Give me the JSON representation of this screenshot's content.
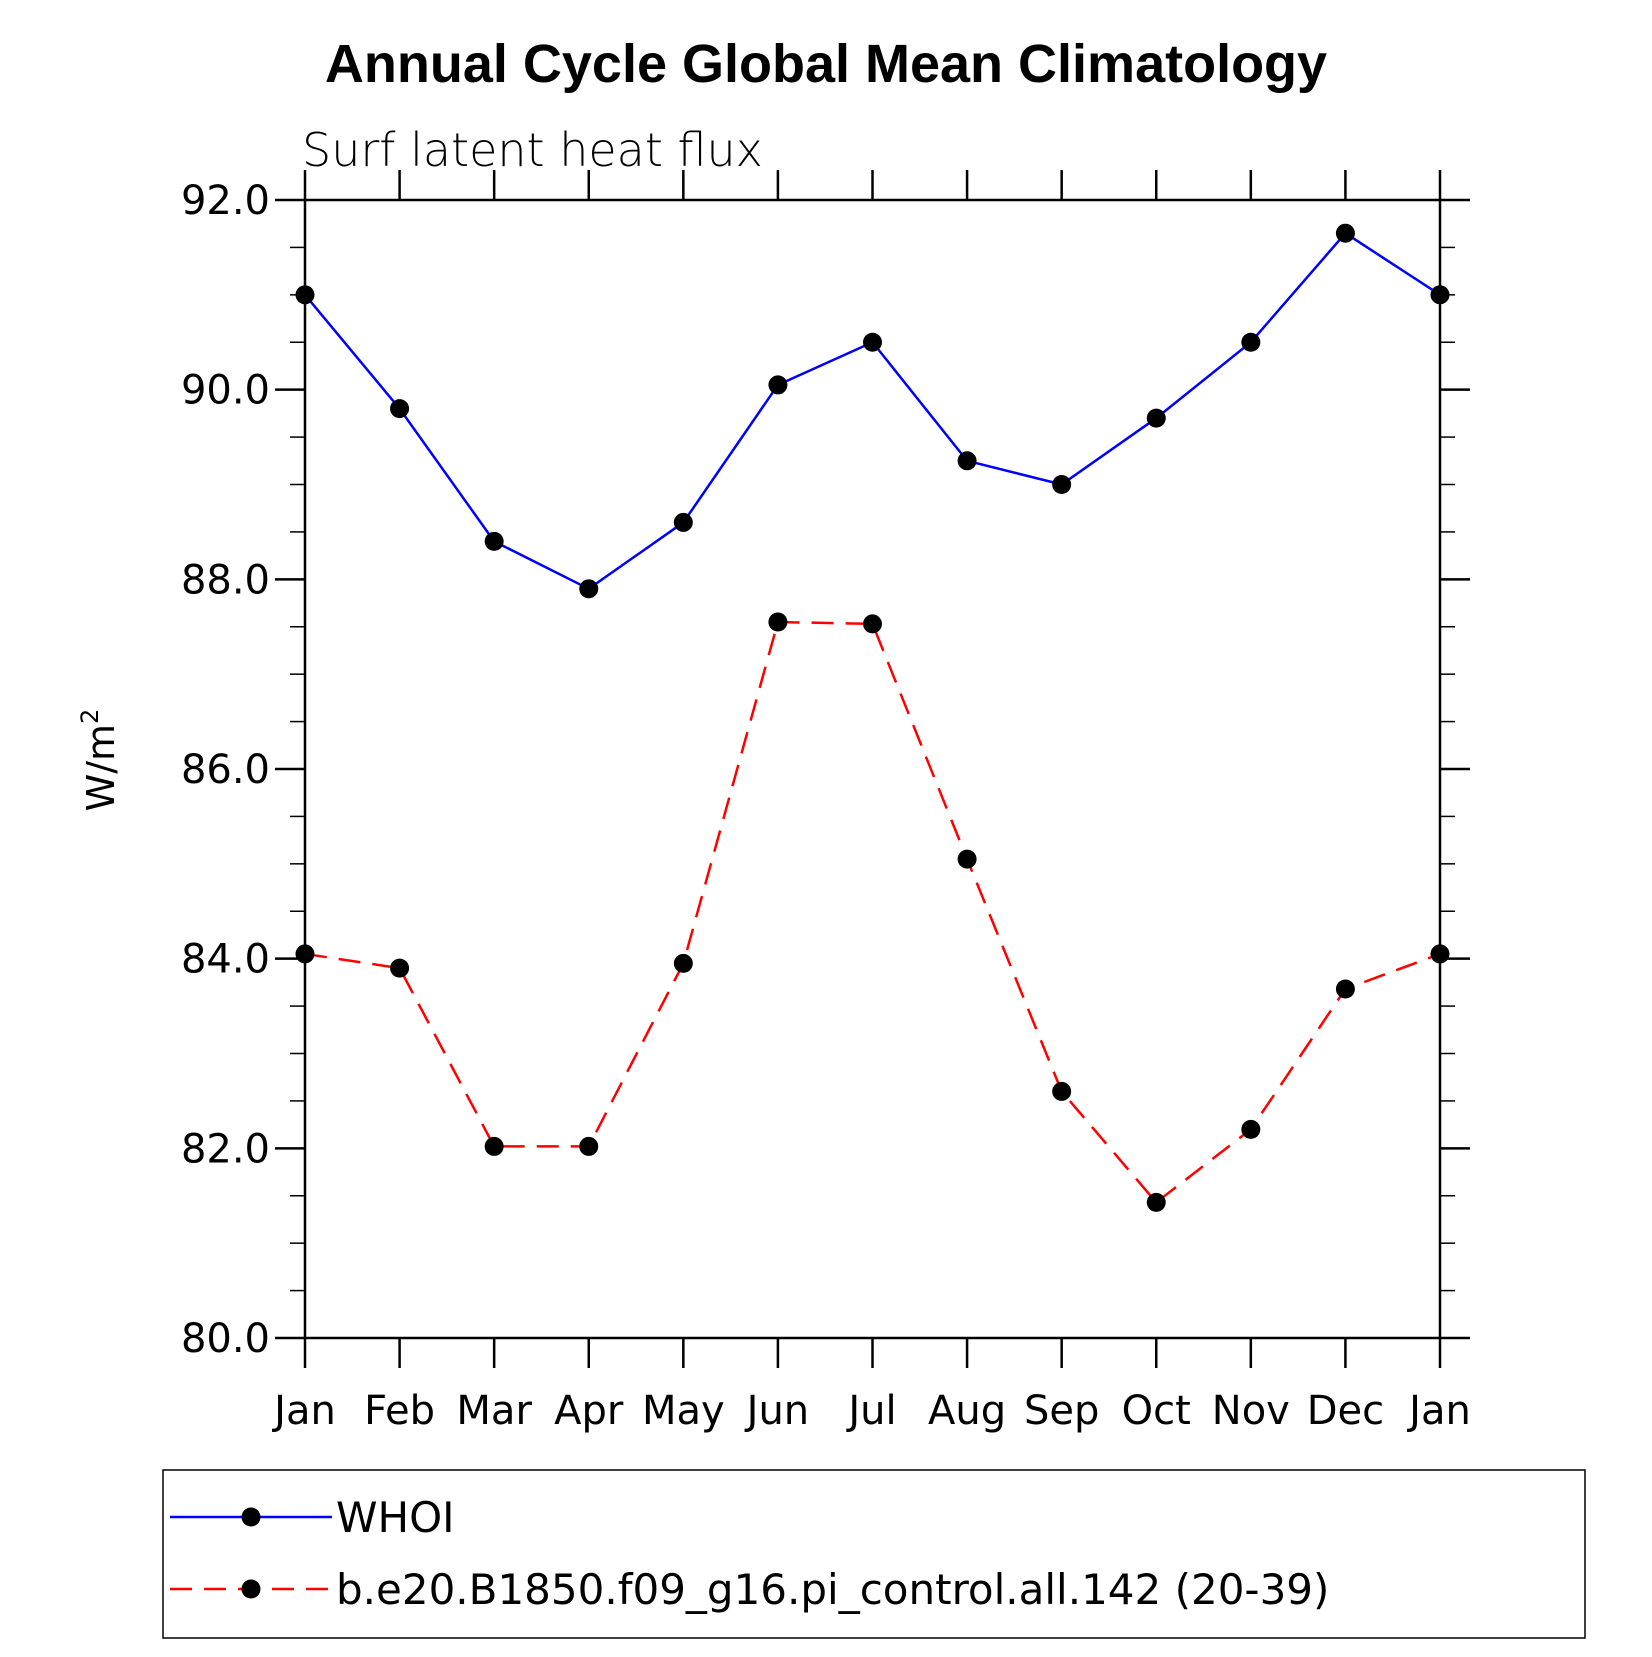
{
  "chart_data": {
    "type": "line",
    "title": "Annual Cycle Global Mean Climatology",
    "subtitle": "Surf latent heat flux",
    "ylabel": "W/m",
    "ylabel_sup": "2",
    "xlabel": "",
    "ylim": [
      80,
      92
    ],
    "yticks": [
      80,
      82,
      84,
      86,
      88,
      90,
      92
    ],
    "ytick_labels": [
      "80.0",
      "82.0",
      "84.0",
      "86.0",
      "88.0",
      "90.0",
      "92.0"
    ],
    "y_minor_step": 0.5,
    "categories": [
      "Jan",
      "Feb",
      "Mar",
      "Apr",
      "May",
      "Jun",
      "Jul",
      "Aug",
      "Sep",
      "Oct",
      "Nov",
      "Dec",
      "Jan"
    ],
    "grid": false,
    "legend_position": "bottom",
    "series": [
      {
        "name": "WHOI",
        "color": "#0000ff",
        "line_style": "solid",
        "marker": "filled-circle",
        "marker_color": "#000000",
        "values": [
          91.0,
          89.8,
          88.4,
          87.9,
          88.6,
          90.05,
          90.5,
          89.25,
          89.0,
          89.7,
          90.5,
          91.65,
          91.0
        ]
      },
      {
        "name": "b.e20.B1850.f09_g16.pi_control.all.142 (20-39)",
        "color": "#ff0000",
        "line_style": "dashed",
        "marker": "filled-circle",
        "marker_color": "#000000",
        "values": [
          84.05,
          83.9,
          82.02,
          82.02,
          83.95,
          87.55,
          87.53,
          85.05,
          82.6,
          81.43,
          82.2,
          83.68,
          84.05
        ]
      }
    ]
  }
}
